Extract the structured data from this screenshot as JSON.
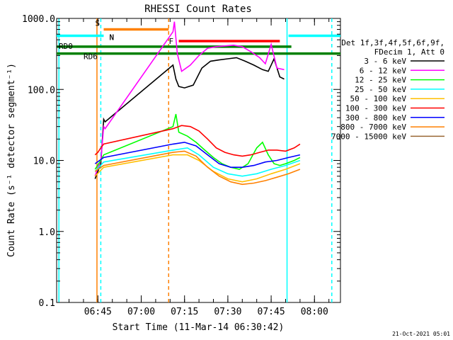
{
  "chart_data": {
    "type": "line",
    "title": "RHESSI Count Rates",
    "xlabel": "Start Time (11-Mar-14 06:30:42)",
    "ylabel": "Count Rate (s⁻¹ detector segment⁻¹)",
    "yscale": "log",
    "ylim": [
      0.1,
      1000
    ],
    "xlim": [
      "06:30:42",
      "08:09:00"
    ],
    "x_ticks": [
      "06:45",
      "07:00",
      "07:15",
      "07:30",
      "07:45",
      "08:00"
    ],
    "y_ticks": [
      "0.1",
      "1.0",
      "10.0",
      "100.0",
      "1000.0"
    ],
    "legend_header": [
      "Det 1f,3f,4f,5f,6f,9f,",
      "FDecim 1, Att 0"
    ],
    "legend_position": "right",
    "series": [
      {
        "name": "3 - 6 keV",
        "color": "#000000",
        "x": [
          "06:44:00",
          "06:45:00",
          "06:46:00",
          "06:47:00",
          "06:47:30",
          "07:11:00",
          "07:12:00",
          "07:13:00",
          "07:15:00",
          "07:18:00",
          "07:21:00",
          "07:24:00",
          "07:27:00",
          "07:30:00",
          "07:33:00",
          "07:36:00",
          "07:39:00",
          "07:42:00",
          "07:44:00",
          "07:46:00",
          "07:48:00",
          "07:49:30"
        ],
        "y": [
          5.5,
          7,
          9,
          38,
          35,
          220,
          140,
          110,
          105,
          115,
          200,
          250,
          260,
          270,
          280,
          250,
          220,
          190,
          180,
          270,
          150,
          140
        ]
      },
      {
        "name": "6 - 12 keV",
        "color": "#ff00ff",
        "x": [
          "06:44:00",
          "06:45:00",
          "06:46:00",
          "06:47:00",
          "06:47:30",
          "07:11:00",
          "07:11:30",
          "07:12:30",
          "07:14:00",
          "07:17:00",
          "07:20:00",
          "07:23:00",
          "07:26:00",
          "07:29:00",
          "07:32:00",
          "07:35:00",
          "07:38:00",
          "07:41:00",
          "07:43:00",
          "07:45:00",
          "07:47:00",
          "07:49:30"
        ],
        "y": [
          6,
          8,
          10,
          30,
          28,
          650,
          900,
          320,
          180,
          220,
          300,
          380,
          400,
          410,
          420,
          400,
          340,
          280,
          230,
          430,
          200,
          190
        ]
      },
      {
        "name": "12 - 25 keV",
        "color": "#00ff00",
        "x": [
          "06:44:00",
          "06:46:00",
          "06:47:00",
          "07:11:00",
          "07:12:00",
          "07:13:00",
          "07:16:00",
          "07:19:00",
          "07:22:00",
          "07:25:00",
          "07:28:00",
          "07:31:00",
          "07:34:00",
          "07:37:00",
          "07:40:00",
          "07:42:00",
          "07:44:00",
          "07:46:00",
          "07:48:00",
          "07:50:00",
          "07:53:00",
          "07:55:00"
        ],
        "y": [
          7.5,
          10,
          12,
          30,
          45,
          25,
          22,
          18,
          14,
          11,
          9,
          8,
          7.5,
          9,
          15,
          18,
          12,
          9,
          8.5,
          9,
          10,
          11
        ]
      },
      {
        "name": "25 - 50 keV",
        "color": "#00ffff",
        "x": [
          "06:44:00",
          "06:47:00",
          "07:11:00",
          "07:16:00",
          "07:20:00",
          "07:25:00",
          "07:30:00",
          "07:35:00",
          "07:40:00",
          "07:45:00",
          "07:50:00",
          "07:55:00"
        ],
        "y": [
          7,
          9.5,
          14,
          15,
          12,
          8,
          6.5,
          6,
          6.5,
          7.5,
          8.5,
          10
        ]
      },
      {
        "name": "50 - 100 keV",
        "color": "#ffbf00",
        "x": [
          "06:44:00",
          "06:47:00",
          "07:11:00",
          "07:16:00",
          "07:20:00",
          "07:25:00",
          "07:30:00",
          "07:35:00",
          "07:40:00",
          "07:45:00",
          "07:50:00",
          "07:55:00"
        ],
        "y": [
          6,
          8,
          12,
          12,
          10,
          7,
          5.5,
          5,
          5.5,
          6.5,
          7.5,
          9
        ]
      },
      {
        "name": "100 - 300 keV",
        "color": "#ff0000",
        "x": [
          "06:44:00",
          "06:45:00",
          "06:46:00",
          "06:47:00",
          "07:11:00",
          "07:14:00",
          "07:17:00",
          "07:20:00",
          "07:23:00",
          "07:26:00",
          "07:29:00",
          "07:32:00",
          "07:35:00",
          "07:38:00",
          "07:41:00",
          "07:44:00",
          "07:47:00",
          "07:50:00",
          "07:53:00",
          "07:55:00"
        ],
        "y": [
          12,
          13,
          15,
          17,
          28,
          31,
          30,
          26,
          20,
          15,
          13,
          12,
          11.5,
          12,
          13,
          14,
          14,
          13.5,
          15,
          17
        ]
      },
      {
        "name": "300 - 800 keV",
        "color": "#0000ff",
        "x": [
          "06:44:00",
          "06:47:00",
          "07:11:00",
          "07:15:00",
          "07:19:00",
          "07:23:00",
          "07:27:00",
          "07:31:00",
          "07:35:00",
          "07:39:00",
          "07:43:00",
          "07:47:00",
          "07:51:00",
          "07:55:00"
        ],
        "y": [
          9,
          11,
          17,
          18,
          16,
          12,
          9,
          8,
          8,
          8.5,
          9.5,
          10,
          11,
          12
        ]
      },
      {
        "name": "800 - 7000 keV",
        "color": "#ff8000",
        "x": [
          "06:44:00",
          "06:47:00",
          "07:11:00",
          "07:15:00",
          "07:19:00",
          "07:23:00",
          "07:27:00",
          "07:31:00",
          "07:35:00",
          "07:39:00",
          "07:43:00",
          "07:47:00",
          "07:51:00",
          "07:55:00"
        ],
        "y": [
          7,
          8.5,
          13,
          13.5,
          11.5,
          8,
          6,
          5,
          4.6,
          4.8,
          5.2,
          5.8,
          6.5,
          7.5
        ]
      },
      {
        "name": "7000 - 15000 keV",
        "color": "#996633",
        "x": [],
        "y": []
      }
    ],
    "state_bars": [
      {
        "label": "S",
        "color": "#ff8000",
        "start": "06:47:00",
        "end": "07:09:30",
        "level": 700
      },
      {
        "label": "N",
        "color": "#00ffff",
        "start": "06:30:42",
        "end": "06:47:00",
        "level": 570
      },
      {
        "label": "N",
        "color": "#00ffff",
        "start": "07:51:00",
        "end": "08:09:00",
        "level": 570
      },
      {
        "label": "F",
        "color": "#ff0000",
        "start": "07:13:00",
        "end": "07:48:00",
        "level": 480
      },
      {
        "label": "RD0",
        "color": "#008000",
        "start": "06:30:42",
        "end": "07:52:00",
        "level": 400
      },
      {
        "label": "RD6",
        "color": "#008000",
        "start": "06:30:42",
        "end": "08:09:00",
        "level": 320
      }
    ],
    "vertical_markers": [
      {
        "time": "06:31:30",
        "color": "#00ffff",
        "style": "solid"
      },
      {
        "time": "06:46:00",
        "color": "#00ffff",
        "style": "dashed"
      },
      {
        "time": "06:44:40",
        "color": "#ff8000",
        "style": "solid"
      },
      {
        "time": "07:09:30",
        "color": "#ff8000",
        "style": "dashed"
      },
      {
        "time": "07:50:30",
        "color": "#00ffff",
        "style": "solid"
      },
      {
        "time": "08:06:00",
        "color": "#00ffff",
        "style": "dashed"
      }
    ],
    "footer": "21-Oct-2021 05:01"
  }
}
